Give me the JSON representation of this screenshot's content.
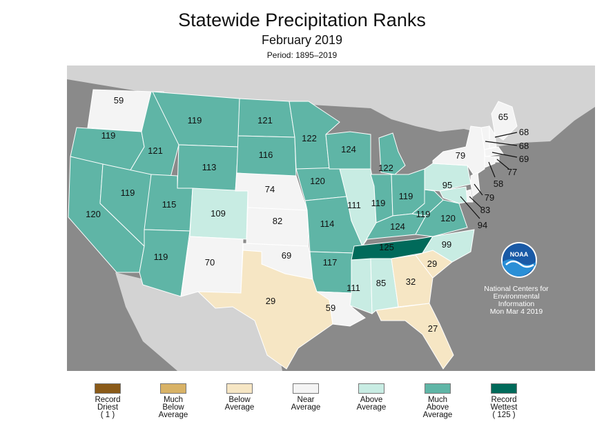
{
  "title": "Statewide Precipitation Ranks",
  "subtitle": "February 2019",
  "period": "Period: 1895–2019",
  "colors": {
    "record_driest": "#8a5a18",
    "much_below": "#d8b266",
    "below": "#f6e6c4",
    "near": "#f4f4f4",
    "above": "#c8ece3",
    "much_above": "#5fb5a6",
    "record_wettest": "#006a5a",
    "background_land": "#d3d3d3",
    "ocean": "#8a8a8a"
  },
  "states": [
    {
      "name": "WA",
      "rank": "59",
      "category": "near"
    },
    {
      "name": "OR",
      "rank": "119",
      "category": "much_above"
    },
    {
      "name": "CA",
      "rank": "120",
      "category": "much_above"
    },
    {
      "name": "ID",
      "rank": "121",
      "category": "much_above"
    },
    {
      "name": "NV",
      "rank": "119",
      "category": "much_above"
    },
    {
      "name": "MT",
      "rank": "119",
      "category": "much_above"
    },
    {
      "name": "WY",
      "rank": "113",
      "category": "much_above"
    },
    {
      "name": "UT",
      "rank": "115",
      "category": "much_above"
    },
    {
      "name": "AZ",
      "rank": "119",
      "category": "much_above"
    },
    {
      "name": "CO",
      "rank": "109",
      "category": "above"
    },
    {
      "name": "NM",
      "rank": "70",
      "category": "near"
    },
    {
      "name": "ND",
      "rank": "121",
      "category": "much_above"
    },
    {
      "name": "SD",
      "rank": "116",
      "category": "much_above"
    },
    {
      "name": "NE",
      "rank": "74",
      "category": "near"
    },
    {
      "name": "KS",
      "rank": "82",
      "category": "near"
    },
    {
      "name": "OK",
      "rank": "69",
      "category": "near"
    },
    {
      "name": "TX",
      "rank": "29",
      "category": "below"
    },
    {
      "name": "MN",
      "rank": "122",
      "category": "much_above"
    },
    {
      "name": "IA",
      "rank": "120",
      "category": "much_above"
    },
    {
      "name": "MO",
      "rank": "114",
      "category": "much_above"
    },
    {
      "name": "AR",
      "rank": "117",
      "category": "much_above"
    },
    {
      "name": "LA",
      "rank": "59",
      "category": "near"
    },
    {
      "name": "WI",
      "rank": "124",
      "category": "much_above"
    },
    {
      "name": "IL",
      "rank": "111",
      "category": "above"
    },
    {
      "name": "MI",
      "rank": "122",
      "category": "much_above"
    },
    {
      "name": "IN",
      "rank": "119",
      "category": "much_above"
    },
    {
      "name": "OH",
      "rank": "119",
      "category": "much_above"
    },
    {
      "name": "KY",
      "rank": "124",
      "category": "much_above"
    },
    {
      "name": "TN",
      "rank": "125",
      "category": "record_wettest"
    },
    {
      "name": "MS",
      "rank": "111",
      "category": "above"
    },
    {
      "name": "AL",
      "rank": "85",
      "category": "above"
    },
    {
      "name": "GA",
      "rank": "32",
      "category": "below"
    },
    {
      "name": "FL",
      "rank": "27",
      "category": "below"
    },
    {
      "name": "SC",
      "rank": "29",
      "category": "below"
    },
    {
      "name": "NC",
      "rank": "99",
      "category": "above"
    },
    {
      "name": "VA",
      "rank": "120",
      "category": "much_above"
    },
    {
      "name": "WV",
      "rank": "119",
      "category": "much_above"
    },
    {
      "name": "PA",
      "rank": "95",
      "category": "above"
    },
    {
      "name": "NY",
      "rank": "79",
      "category": "near"
    },
    {
      "name": "ME",
      "rank": "65",
      "category": "near"
    },
    {
      "name": "NH",
      "rank": "68",
      "category": "near"
    },
    {
      "name": "VT",
      "rank": "68",
      "category": "near"
    },
    {
      "name": "MA",
      "rank": "69",
      "category": "near"
    },
    {
      "name": "RI",
      "rank": "77",
      "category": "near"
    },
    {
      "name": "CT",
      "rank": "58",
      "category": "near"
    },
    {
      "name": "NJ",
      "rank": "79",
      "category": "near"
    },
    {
      "name": "DE",
      "rank": "83",
      "category": "near"
    },
    {
      "name": "MD",
      "rank": "94",
      "category": "above"
    }
  ],
  "credit": {
    "line1": "National Centers for",
    "line2": "Environmental",
    "line3": "Information",
    "date": "Mon Mar  4 2019",
    "logo_text": "NOAA"
  },
  "legend": [
    {
      "label": "Record\nDriest\n( 1 )",
      "category": "record_driest"
    },
    {
      "label": "Much\nBelow\nAverage",
      "category": "much_below"
    },
    {
      "label": "Below\nAverage",
      "category": "below"
    },
    {
      "label": "Near\nAverage",
      "category": "near"
    },
    {
      "label": "Above\nAverage",
      "category": "above"
    },
    {
      "label": "Much\nAbove\nAverage",
      "category": "much_above"
    },
    {
      "label": "Record\nWettest\n( 125 )",
      "category": "record_wettest"
    }
  ]
}
